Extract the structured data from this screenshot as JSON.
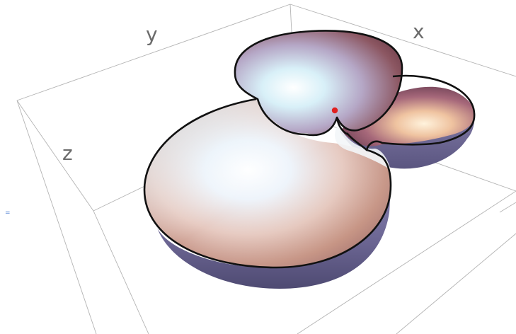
{
  "axes": {
    "x_label": "x",
    "y_label": "y",
    "z_label": "z"
  },
  "side_marker": "=",
  "colors": {
    "rim": "#111111",
    "box": "#b4b4b4",
    "axis_text": "#6b6b6b",
    "critical_point": "#e02020",
    "shell_outer": "#7c7aa8",
    "shell_inner_light": "#eaf7fb",
    "shell_inner_warm": "#f2d6b8",
    "shell_inner_dark": "#8f4f58"
  },
  "surface": {
    "type": "3d-surface",
    "lobes": 3,
    "critical_point_visible": true
  }
}
